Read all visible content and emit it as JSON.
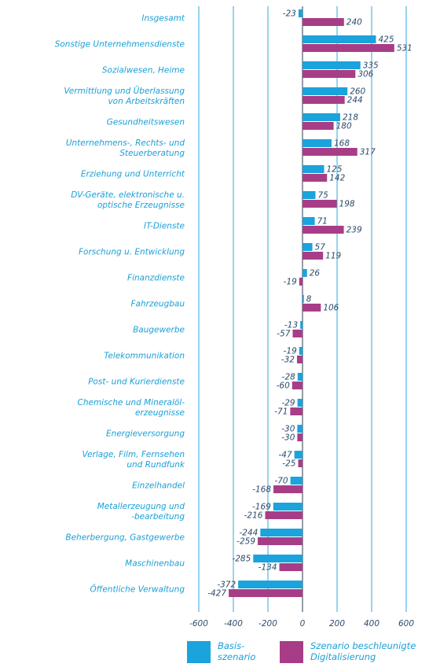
{
  "chart_data": {
    "type": "bar",
    "orientation": "horizontal",
    "xlim": [
      -600,
      700
    ],
    "x_ticks": [
      -600,
      -400,
      -200,
      0,
      200,
      400,
      600
    ],
    "x_tick_labels": [
      "-600",
      "-400",
      "-200",
      "0",
      "200",
      "400",
      "600"
    ],
    "grid": "vertical",
    "legend_position": "bottom",
    "categories": [
      [
        "Insgesamt"
      ],
      [
        "Sonstige Unternehmensdienste"
      ],
      [
        "Sozialwesen, Heime"
      ],
      [
        "Vermittlung und Überlassung",
        "von Arbeitskräften"
      ],
      [
        "Gesundheitswesen"
      ],
      [
        "Unternehmens-, Rechts- und",
        "Steuerberatung"
      ],
      [
        "Erziehung und Unterricht"
      ],
      [
        "DV-Geräte, elektronische u.",
        "optische Erzeugnisse"
      ],
      [
        "IT-Dienste"
      ],
      [
        "Forschung u. Entwicklung"
      ],
      [
        "Finanzdienste"
      ],
      [
        "Fahrzeugbau"
      ],
      [
        "Baugewerbe"
      ],
      [
        "Telekommunikation"
      ],
      [
        "Post- und Kurierdienste"
      ],
      [
        "Chemische und Mineralöl-",
        "erzeugnisse"
      ],
      [
        "Energieversorgung"
      ],
      [
        "Verlage, Film, Fernsehen",
        "und Rundfunk"
      ],
      [
        "Einzelhandel"
      ],
      [
        "Metallerzeugung und",
        "-bearbeitung"
      ],
      [
        "Beherbergung, Gastgewerbe"
      ],
      [
        "Maschinenbau"
      ],
      [
        "Öffentliche Verwaltung"
      ]
    ],
    "series": [
      {
        "name": [
          "Basis-",
          "szenario"
        ],
        "color": "#1aa3dc",
        "values": [
          -23,
          425,
          335,
          260,
          218,
          168,
          125,
          75,
          71,
          57,
          26,
          8,
          -13,
          -19,
          -28,
          -29,
          -30,
          -47,
          -70,
          -169,
          -244,
          -285,
          -372
        ]
      },
      {
        "name": [
          "Szenario beschleunigte",
          "Digitalisierung"
        ],
        "color": "#a83d87",
        "values": [
          240,
          531,
          306,
          244,
          180,
          317,
          142,
          198,
          239,
          119,
          -19,
          106,
          -57,
          -32,
          -60,
          -71,
          -30,
          -25,
          -168,
          -216,
          -259,
          -134,
          -427
        ]
      }
    ]
  }
}
